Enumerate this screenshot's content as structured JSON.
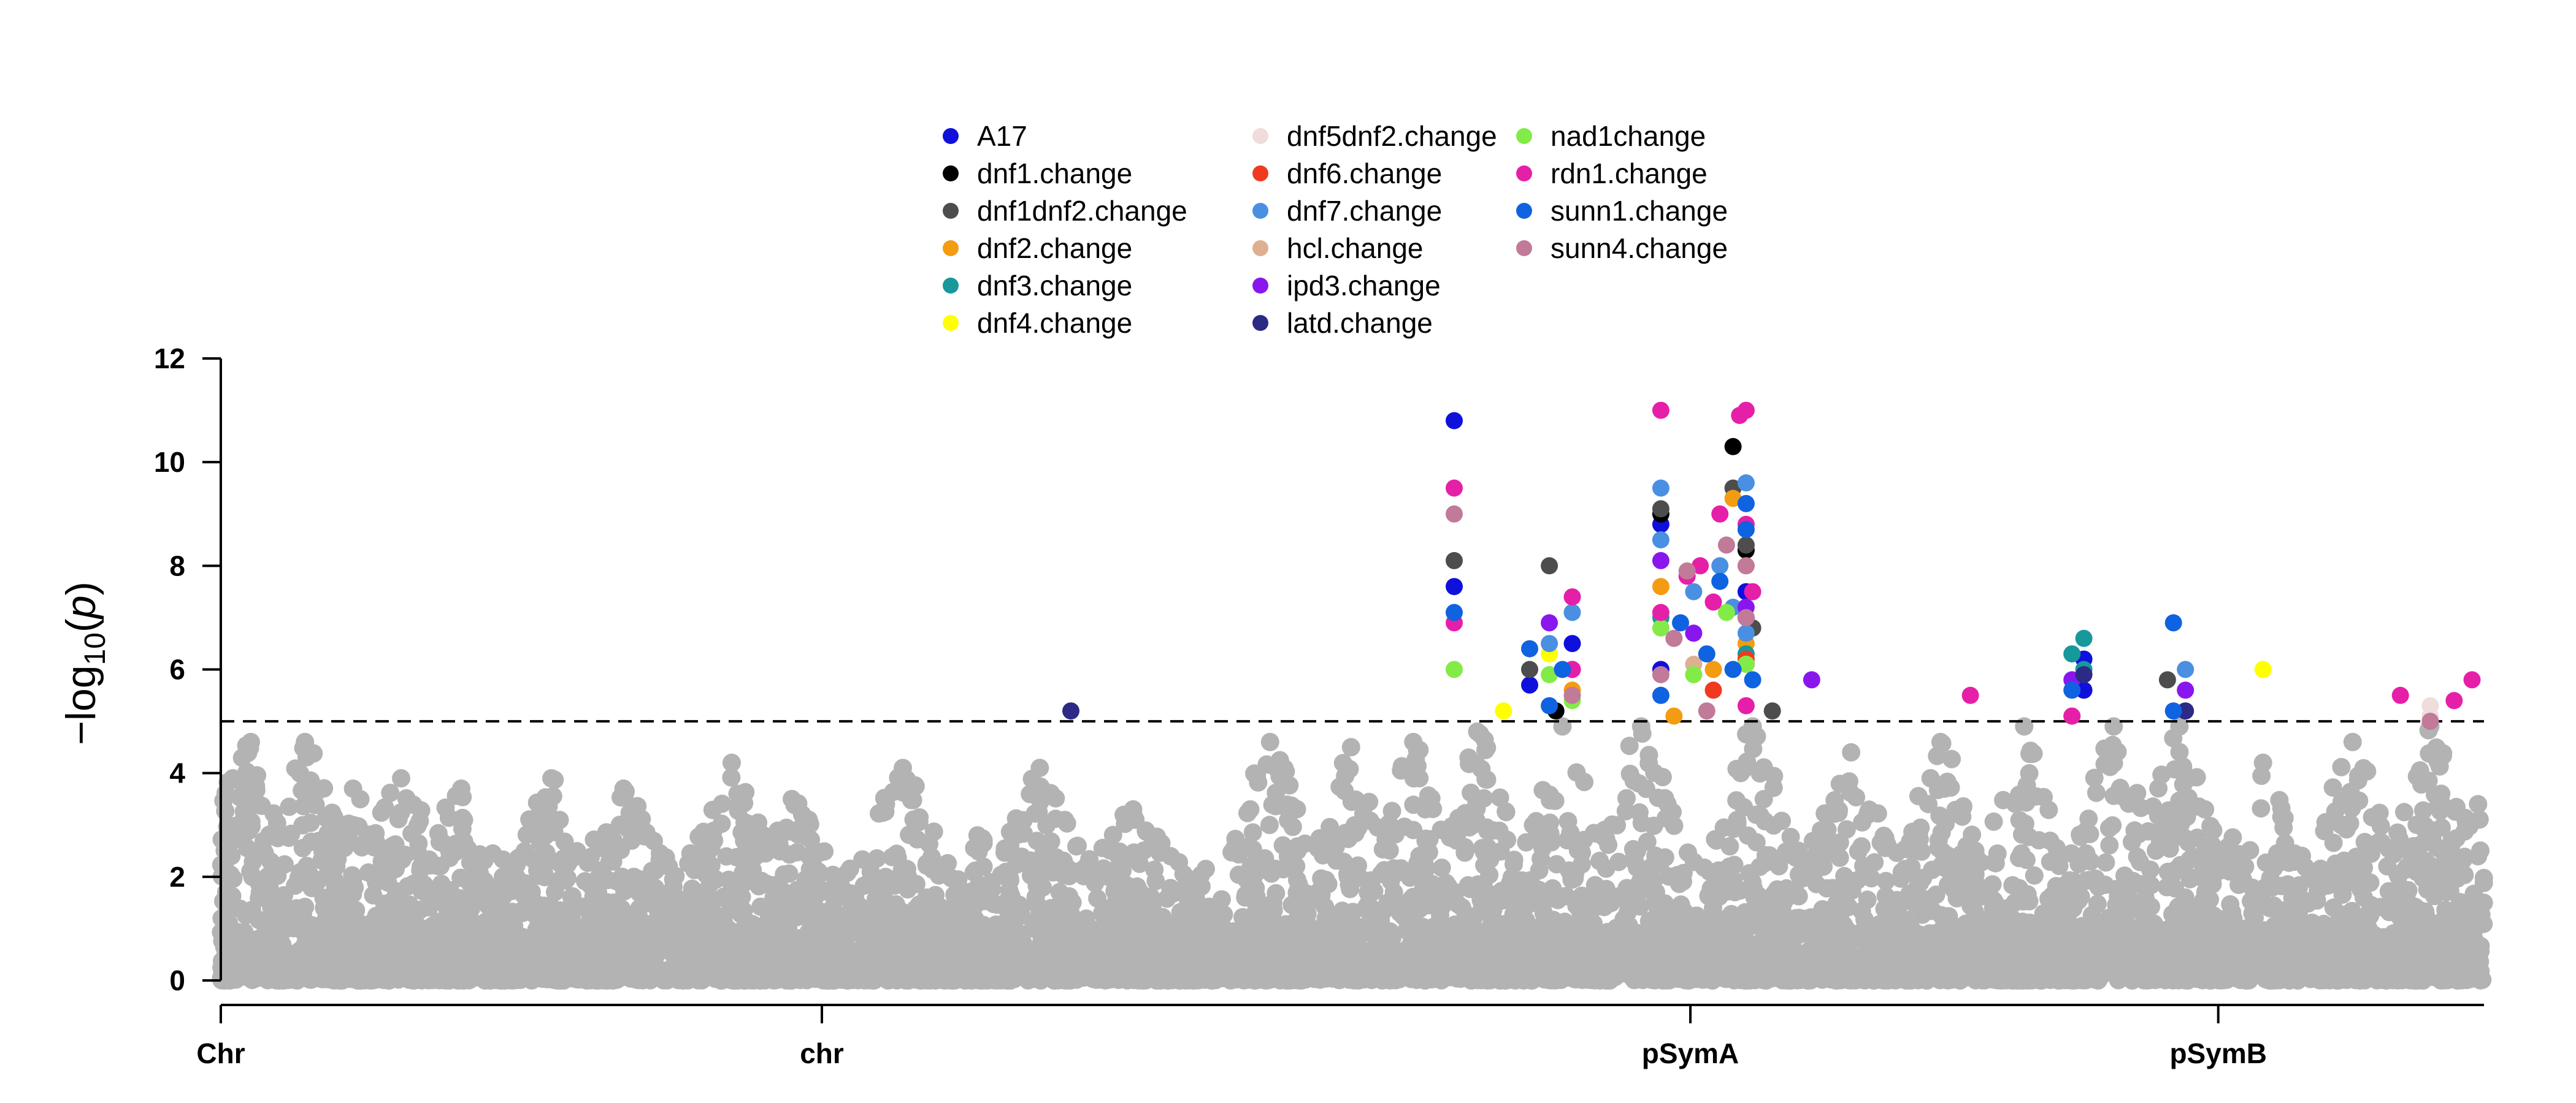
{
  "chart_data": {
    "type": "scatter",
    "subtype": "manhattan",
    "title": "",
    "xlabel": "",
    "ylabel": "-log10(p)",
    "ylim": [
      0,
      12
    ],
    "yticks": [
      0,
      2,
      4,
      6,
      8,
      10,
      12
    ],
    "threshold": 5,
    "legend_position": "top-center",
    "background_color": "#B3B3B3",
    "chromosomes": [
      {
        "label": "Chr",
        "start": 0,
        "end": 100
      },
      {
        "label": "chr",
        "start": 100,
        "end": 200
      },
      {
        "label": "pSymA",
        "start": 200,
        "end": 272
      },
      {
        "label": "pSymB",
        "start": 272,
        "end": 367
      }
    ],
    "chr_ticks": [
      {
        "label": "Chr",
        "x": 0
      },
      {
        "label": "chr",
        "x": 100
      },
      {
        "label": "pSymA",
        "x": 237.5
      },
      {
        "label": "pSymB",
        "x": 322.5
      }
    ],
    "background_peaks": [
      {
        "x": 2,
        "y": 3.9
      },
      {
        "x": 5,
        "y": 4.6
      },
      {
        "x": 14,
        "y": 4.6
      },
      {
        "x": 22,
        "y": 3.7
      },
      {
        "x": 30,
        "y": 3.9
      },
      {
        "x": 40,
        "y": 3.7
      },
      {
        "x": 55,
        "y": 3.9
      },
      {
        "x": 67,
        "y": 3.7
      },
      {
        "x": 85,
        "y": 4.2
      },
      {
        "x": 95,
        "y": 3.5
      },
      {
        "x": 108,
        "y": 2.0
      },
      {
        "x": 113,
        "y": 4.1
      },
      {
        "x": 125,
        "y": 2.8
      },
      {
        "x": 135,
        "y": 4.1
      },
      {
        "x": 150,
        "y": 3.3
      },
      {
        "x": 172,
        "y": 4.6
      },
      {
        "x": 185,
        "y": 4.5
      },
      {
        "x": 195,
        "y": 4.6
      },
      {
        "x": 205,
        "y": 4.8
      },
      {
        "x": 218,
        "y": 4.9
      },
      {
        "x": 230,
        "y": 4.9
      },
      {
        "x": 247,
        "y": 4.9
      },
      {
        "x": 262,
        "y": 4.4
      },
      {
        "x": 276,
        "y": 4.6
      },
      {
        "x": 290,
        "y": 4.9
      },
      {
        "x": 305,
        "y": 4.9
      },
      {
        "x": 316,
        "y": 4.9
      },
      {
        "x": 330,
        "y": 4.2
      },
      {
        "x": 345,
        "y": 4.6
      },
      {
        "x": 358,
        "y": 4.9
      },
      {
        "x": 366,
        "y": 3.4
      }
    ],
    "series": [
      {
        "name": "A17",
        "color": "#1010DD",
        "points": [
          [
            201.5,
            10.8
          ],
          [
            201.5,
            7.6
          ],
          [
            213,
            5.7
          ],
          [
            219.5,
            6.5
          ],
          [
            233,
            8.8
          ],
          [
            233,
            6.0
          ],
          [
            246,
            7.5
          ],
          [
            246,
            7.0
          ],
          [
            300,
            6.2
          ],
          [
            300,
            5.6
          ]
        ]
      },
      {
        "name": "dnf1.change",
        "color": "#000000",
        "points": [
          [
            217,
            5.2
          ],
          [
            233,
            9.0
          ],
          [
            244,
            10.3
          ],
          [
            246,
            8.3
          ],
          [
            246,
            6.1
          ]
        ]
      },
      {
        "name": "dnf1dnf2.change",
        "color": "#4D4D4D",
        "points": [
          [
            201.5,
            8.1
          ],
          [
            213,
            6.0
          ],
          [
            216,
            8.0
          ],
          [
            233,
            9.1
          ],
          [
            244,
            9.5
          ],
          [
            246,
            8.4
          ],
          [
            247,
            6.8
          ],
          [
            250,
            5.2
          ],
          [
            314,
            5.8
          ]
        ]
      },
      {
        "name": "dnf2.change",
        "color": "#F39C12",
        "points": [
          [
            219.5,
            5.6
          ],
          [
            233,
            7.6
          ],
          [
            235,
            5.1
          ],
          [
            241,
            6.0
          ],
          [
            244,
            9.3
          ],
          [
            246,
            8.0
          ],
          [
            246,
            6.5
          ],
          [
            298,
            5.1
          ]
        ]
      },
      {
        "name": "dnf3.change",
        "color": "#17989A",
        "points": [
          [
            233,
            7.0
          ],
          [
            246,
            6.3
          ],
          [
            300,
            6.6
          ],
          [
            300,
            6.0
          ],
          [
            298,
            6.3
          ]
        ]
      },
      {
        "name": "dnf4.change",
        "color": "#FFFF00",
        "points": [
          [
            209,
            5.2
          ],
          [
            216,
            6.3
          ],
          [
            330,
            6.0
          ]
        ]
      },
      {
        "name": "dnf5dnf2.change",
        "color": "#F0DCDC",
        "points": [
          [
            358,
            5.3
          ],
          [
            358,
            5.1
          ]
        ]
      },
      {
        "name": "dnf6.change",
        "color": "#F03A20",
        "points": [
          [
            241,
            5.6
          ],
          [
            246,
            6.2
          ]
        ]
      },
      {
        "name": "dnf7.change",
        "color": "#4A90E2",
        "points": [
          [
            216,
            6.5
          ],
          [
            219.5,
            7.1
          ],
          [
            233,
            9.5
          ],
          [
            233,
            8.5
          ],
          [
            238,
            7.5
          ],
          [
            242,
            8.0
          ],
          [
            244,
            7.2
          ],
          [
            246,
            9.6
          ],
          [
            246,
            9.2
          ],
          [
            246,
            6.7
          ],
          [
            317,
            6.0
          ]
        ]
      },
      {
        "name": "hcl.change",
        "color": "#DDB092",
        "points": [
          [
            233,
            5.5
          ],
          [
            238,
            6.1
          ],
          [
            246,
            6.1
          ]
        ]
      },
      {
        "name": "ipd3.change",
        "color": "#8A16EE",
        "points": [
          [
            216,
            6.9
          ],
          [
            219.5,
            6.0
          ],
          [
            233,
            8.1
          ],
          [
            238,
            6.7
          ],
          [
            246,
            7.2
          ],
          [
            256,
            5.8
          ],
          [
            298,
            5.8
          ],
          [
            317,
            5.6
          ]
        ]
      },
      {
        "name": "latd.change",
        "color": "#2C2A85",
        "points": [
          [
            140,
            5.2
          ],
          [
            300,
            5.9
          ],
          [
            317,
            5.2
          ]
        ]
      },
      {
        "name": "nad1change",
        "color": "#83EB48",
        "points": [
          [
            201.5,
            6.0
          ],
          [
            216,
            5.9
          ],
          [
            219.5,
            5.4
          ],
          [
            233,
            6.8
          ],
          [
            238,
            5.9
          ],
          [
            243,
            7.1
          ],
          [
            246,
            6.1
          ]
        ]
      },
      {
        "name": "rdn1.change",
        "color": "#E61FA8",
        "points": [
          [
            201.5,
            9.5
          ],
          [
            201.5,
            6.9
          ],
          [
            219.5,
            7.4
          ],
          [
            219.5,
            6.0
          ],
          [
            233,
            11.0
          ],
          [
            233,
            7.1
          ],
          [
            237,
            7.8
          ],
          [
            239,
            8.0
          ],
          [
            241,
            7.3
          ],
          [
            242,
            9.0
          ],
          [
            245,
            10.9
          ],
          [
            246,
            11.0
          ],
          [
            246,
            8.8
          ],
          [
            247,
            7.5
          ],
          [
            246,
            5.3
          ],
          [
            281,
            5.5
          ],
          [
            298,
            5.1
          ],
          [
            353,
            5.5
          ],
          [
            362,
            5.4
          ],
          [
            365,
            5.8
          ]
        ]
      },
      {
        "name": "sunn1.change",
        "color": "#0F63E0",
        "points": [
          [
            201.5,
            7.1
          ],
          [
            213,
            6.4
          ],
          [
            216,
            5.3
          ],
          [
            218,
            6.0
          ],
          [
            233,
            5.5
          ],
          [
            236,
            6.9
          ],
          [
            240,
            6.3
          ],
          [
            242,
            7.7
          ],
          [
            244,
            6.0
          ],
          [
            246,
            9.2
          ],
          [
            246,
            8.7
          ],
          [
            247,
            5.8
          ],
          [
            298,
            5.6
          ],
          [
            315,
            6.9
          ],
          [
            315,
            5.2
          ]
        ]
      },
      {
        "name": "sunn4.change",
        "color": "#C17A98",
        "points": [
          [
            201.5,
            9.0
          ],
          [
            219.5,
            5.5
          ],
          [
            233,
            5.9
          ],
          [
            235,
            6.6
          ],
          [
            237,
            7.9
          ],
          [
            240,
            5.2
          ],
          [
            243,
            8.4
          ],
          [
            246,
            8.0
          ],
          [
            246,
            7.0
          ],
          [
            358,
            5.0
          ]
        ]
      }
    ]
  }
}
